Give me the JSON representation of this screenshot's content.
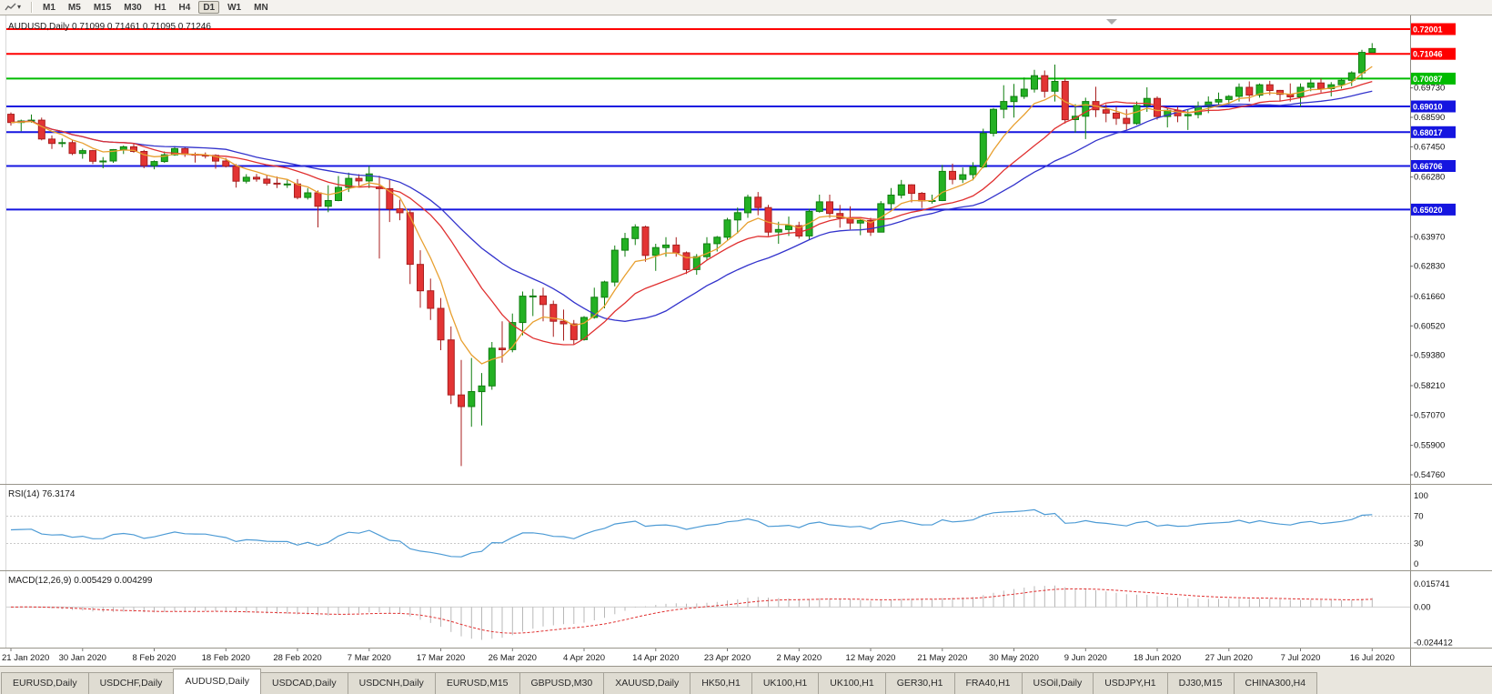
{
  "toolbar": {
    "timeframes": [
      "M1",
      "M5",
      "M15",
      "M30",
      "H1",
      "H4",
      "D1",
      "W1",
      "MN"
    ],
    "active_timeframe": "D1"
  },
  "ui": {
    "header_display": "AUDUSD,Daily 0.71099 0.71461 0.71095 0.71246"
  },
  "indicators": {
    "rsi": {
      "display": "RSI(14) 76.3174",
      "label": "RSI(14)",
      "value": "76.3174",
      "period": 14,
      "levels": [
        "100",
        "70",
        "30",
        "0"
      ],
      "line_color": "#4D9BD5"
    },
    "macd": {
      "display": "MACD(12,26,9) 0.005429 0.004299",
      "label": "MACD(12,26,9)",
      "macd_value": "0.005429",
      "signal_value": "0.004299",
      "fast": 12,
      "slow": 26,
      "signal": 9,
      "scale_labels": [
        "0.015741",
        "0.00",
        "-0.024412"
      ],
      "histogram_color": "#B8B8B8",
      "signal_color": "#E03030"
    }
  },
  "chart_data": {
    "type": "candlestick",
    "symbol": "AUDUSD",
    "timeframe": "Daily",
    "current_bar": {
      "open": "0.71099",
      "high": "0.71461",
      "low": "0.71095",
      "close": "0.71246"
    },
    "bars_per_label": 7,
    "x_labels": [
      "21 Jan 2020",
      "30 Jan 2020",
      "8 Feb 2020",
      "18 Feb 2020",
      "28 Feb 2020",
      "7 Mar 2020",
      "17 Mar 2020",
      "26 Mar 2020",
      "4 Apr 2020",
      "14 Apr 2020",
      "23 Apr 2020",
      "2 May 2020",
      "12 May 2020",
      "21 May 2020",
      "30 May 2020",
      "9 Jun 2020",
      "18 Jun 2020",
      "27 Jun 2020",
      "7 Jul 2020",
      "16 Jul 2020"
    ],
    "price_ticks": [
      "0.69730",
      "0.68590",
      "0.67450",
      "0.66280",
      "0.63970",
      "0.62830",
      "0.61660",
      "0.60520",
      "0.59380",
      "0.58210",
      "0.57070",
      "0.55900",
      "0.54760"
    ],
    "h_lines": [
      {
        "label": "0.72001",
        "color": "#FF0000"
      },
      {
        "label": "0.71046",
        "color": "#FF0000"
      },
      {
        "label": "0.70087",
        "color": "#00BB00"
      },
      {
        "label": "0.69010",
        "color": "#1515E0"
      },
      {
        "label": "0.68017",
        "color": "#1515E0"
      },
      {
        "label": "0.66706",
        "color": "#1515E0"
      },
      {
        "label": "0.65020",
        "color": "#1515E0"
      }
    ],
    "moving_averages": [
      {
        "period": 22,
        "type": "sma",
        "color": "#3333CC"
      },
      {
        "period": 13,
        "type": "sma",
        "color": "#E03030"
      },
      {
        "period": 6,
        "type": "ema",
        "color": "#E8A030"
      }
    ],
    "colors": {
      "bull": "#23B123",
      "bull_edge": "#0F7E0F",
      "bear": "#E33434",
      "bear_edge": "#A81F1F"
    },
    "candles": [
      [
        0.6871,
        0.6878,
        0.6827,
        0.6839
      ],
      [
        0.6839,
        0.685,
        0.6805,
        0.6845
      ],
      [
        0.6845,
        0.687,
        0.6838,
        0.6848
      ],
      [
        0.6848,
        0.6858,
        0.677,
        0.6775
      ],
      [
        0.6775,
        0.6789,
        0.6737,
        0.6758
      ],
      [
        0.6758,
        0.6777,
        0.6743,
        0.6761
      ],
      [
        0.6761,
        0.6772,
        0.6713,
        0.6719
      ],
      [
        0.6719,
        0.6738,
        0.6699,
        0.673
      ],
      [
        0.673,
        0.6733,
        0.6678,
        0.6689
      ],
      [
        0.6689,
        0.6705,
        0.6662,
        0.669
      ],
      [
        0.669,
        0.6736,
        0.6683,
        0.6734
      ],
      [
        0.6734,
        0.675,
        0.6717,
        0.6745
      ],
      [
        0.6745,
        0.6759,
        0.6722,
        0.6727
      ],
      [
        0.6727,
        0.6733,
        0.6662,
        0.6672
      ],
      [
        0.6672,
        0.6692,
        0.6658,
        0.6688
      ],
      [
        0.6688,
        0.6727,
        0.6683,
        0.6714
      ],
      [
        0.6714,
        0.6748,
        0.671,
        0.6738
      ],
      [
        0.6738,
        0.6743,
        0.6706,
        0.6716
      ],
      [
        0.6716,
        0.6723,
        0.6684,
        0.6713
      ],
      [
        0.6713,
        0.6723,
        0.67,
        0.6712
      ],
      [
        0.6712,
        0.6716,
        0.666,
        0.669
      ],
      [
        0.669,
        0.6702,
        0.6665,
        0.667
      ],
      [
        0.667,
        0.6678,
        0.6587,
        0.6612
      ],
      [
        0.6612,
        0.6639,
        0.6603,
        0.6627
      ],
      [
        0.6627,
        0.664,
        0.661,
        0.662
      ],
      [
        0.662,
        0.6635,
        0.6595,
        0.6604
      ],
      [
        0.6604,
        0.663,
        0.6585,
        0.6601
      ],
      [
        0.6601,
        0.662,
        0.6586,
        0.6601
      ],
      [
        0.6601,
        0.662,
        0.6542,
        0.6549
      ],
      [
        0.6549,
        0.6585,
        0.6541,
        0.6567
      ],
      [
        0.6567,
        0.6576,
        0.6433,
        0.6515
      ],
      [
        0.6515,
        0.6596,
        0.6492,
        0.6537
      ],
      [
        0.6537,
        0.6632,
        0.6534,
        0.6588
      ],
      [
        0.6588,
        0.6645,
        0.657,
        0.6623
      ],
      [
        0.6623,
        0.6639,
        0.6593,
        0.6613
      ],
      [
        0.6613,
        0.667,
        0.6585,
        0.664
      ],
      [
        0.659,
        0.6633,
        0.6313,
        0.6583
      ],
      [
        0.6583,
        0.6617,
        0.6454,
        0.6505
      ],
      [
        0.6505,
        0.654,
        0.6461,
        0.649
      ],
      [
        0.649,
        0.6505,
        0.6214,
        0.629
      ],
      [
        0.629,
        0.6345,
        0.6122,
        0.6188
      ],
      [
        0.6188,
        0.6235,
        0.6075,
        0.612
      ],
      [
        0.612,
        0.616,
        0.5958,
        0.5998
      ],
      [
        0.5998,
        0.605,
        0.575,
        0.5785
      ],
      [
        0.5785,
        0.592,
        0.551,
        0.574
      ],
      [
        0.574,
        0.5928,
        0.5662,
        0.5798
      ],
      [
        0.5798,
        0.587,
        0.5667,
        0.582
      ],
      [
        0.582,
        0.599,
        0.5805,
        0.5966
      ],
      [
        0.5966,
        0.607,
        0.591,
        0.596
      ],
      [
        0.596,
        0.61,
        0.595,
        0.6065
      ],
      [
        0.6065,
        0.6185,
        0.6015,
        0.6167
      ],
      [
        0.6167,
        0.6195,
        0.609,
        0.6168
      ],
      [
        0.6168,
        0.62,
        0.607,
        0.6135
      ],
      [
        0.6135,
        0.615,
        0.601,
        0.607
      ],
      [
        0.607,
        0.6115,
        0.5995,
        0.606
      ],
      [
        0.606,
        0.6075,
        0.598,
        0.5999
      ],
      [
        0.5999,
        0.609,
        0.5995,
        0.6085
      ],
      [
        0.6085,
        0.62,
        0.608,
        0.6163
      ],
      [
        0.6163,
        0.6227,
        0.612,
        0.6222
      ],
      [
        0.6222,
        0.6363,
        0.6205,
        0.6345
      ],
      [
        0.6345,
        0.6412,
        0.632,
        0.639
      ],
      [
        0.639,
        0.6445,
        0.6365,
        0.6435
      ],
      [
        0.6435,
        0.644,
        0.63,
        0.6325
      ],
      [
        0.6325,
        0.637,
        0.6265,
        0.6355
      ],
      [
        0.6355,
        0.6395,
        0.632,
        0.6365
      ],
      [
        0.6365,
        0.6395,
        0.632,
        0.6335
      ],
      [
        0.6335,
        0.634,
        0.6253,
        0.627
      ],
      [
        0.627,
        0.633,
        0.625,
        0.632
      ],
      [
        0.632,
        0.6395,
        0.6305,
        0.637
      ],
      [
        0.637,
        0.64,
        0.634,
        0.6395
      ],
      [
        0.6395,
        0.647,
        0.6385,
        0.6462
      ],
      [
        0.6462,
        0.651,
        0.641,
        0.649
      ],
      [
        0.649,
        0.656,
        0.647,
        0.655
      ],
      [
        0.655,
        0.657,
        0.648,
        0.651
      ],
      [
        0.651,
        0.652,
        0.64,
        0.6415
      ],
      [
        0.6415,
        0.6455,
        0.637,
        0.6425
      ],
      [
        0.6425,
        0.6475,
        0.64,
        0.644
      ],
      [
        0.644,
        0.6455,
        0.639,
        0.64
      ],
      [
        0.64,
        0.6505,
        0.6385,
        0.6495
      ],
      [
        0.6495,
        0.656,
        0.649,
        0.6532
      ],
      [
        0.6532,
        0.656,
        0.647,
        0.6487
      ],
      [
        0.6487,
        0.652,
        0.6432,
        0.647
      ],
      [
        0.647,
        0.6515,
        0.6425,
        0.645
      ],
      [
        0.645,
        0.6465,
        0.6403,
        0.646
      ],
      [
        0.646,
        0.647,
        0.64,
        0.6415
      ],
      [
        0.6415,
        0.6535,
        0.6415,
        0.6525
      ],
      [
        0.6525,
        0.6585,
        0.6505,
        0.6558
      ],
      [
        0.6558,
        0.6617,
        0.6545,
        0.6598
      ],
      [
        0.6598,
        0.66,
        0.653,
        0.6565
      ],
      [
        0.6565,
        0.657,
        0.6508,
        0.6535
      ],
      [
        0.6535,
        0.656,
        0.6525,
        0.6537
      ],
      [
        0.6537,
        0.6675,
        0.6535,
        0.665
      ],
      [
        0.665,
        0.668,
        0.66,
        0.6619
      ],
      [
        0.6619,
        0.6665,
        0.6605,
        0.6637
      ],
      [
        0.6637,
        0.6685,
        0.6615,
        0.6667
      ],
      [
        0.6667,
        0.6815,
        0.6662,
        0.6797
      ],
      [
        0.6797,
        0.6895,
        0.6785,
        0.689
      ],
      [
        0.689,
        0.6983,
        0.6855,
        0.692
      ],
      [
        0.692,
        0.6988,
        0.6858,
        0.694
      ],
      [
        0.694,
        0.7013,
        0.693,
        0.6968
      ],
      [
        0.6968,
        0.7043,
        0.6955,
        0.702
      ],
      [
        0.702,
        0.704,
        0.6935,
        0.696
      ],
      [
        0.696,
        0.7063,
        0.692,
        0.6998
      ],
      [
        0.6998,
        0.701,
        0.6835,
        0.685
      ],
      [
        0.685,
        0.691,
        0.68,
        0.6863
      ],
      [
        0.6863,
        0.6935,
        0.6775,
        0.692
      ],
      [
        0.692,
        0.6977,
        0.686,
        0.6888
      ],
      [
        0.6888,
        0.691,
        0.684,
        0.6875
      ],
      [
        0.6875,
        0.69,
        0.683,
        0.6855
      ],
      [
        0.6855,
        0.689,
        0.681,
        0.6835
      ],
      [
        0.6835,
        0.692,
        0.683,
        0.6905
      ],
      [
        0.6905,
        0.6975,
        0.688,
        0.6932
      ],
      [
        0.6932,
        0.694,
        0.685,
        0.6862
      ],
      [
        0.6862,
        0.6895,
        0.682,
        0.6886
      ],
      [
        0.6886,
        0.69,
        0.684,
        0.6865
      ],
      [
        0.6865,
        0.689,
        0.681,
        0.687
      ],
      [
        0.687,
        0.692,
        0.6855,
        0.6902
      ],
      [
        0.6902,
        0.694,
        0.6875,
        0.6918
      ],
      [
        0.6918,
        0.6955,
        0.69,
        0.6928
      ],
      [
        0.6928,
        0.6945,
        0.691,
        0.694
      ],
      [
        0.694,
        0.699,
        0.692,
        0.6975
      ],
      [
        0.6975,
        0.6998,
        0.692,
        0.6945
      ],
      [
        0.6945,
        0.699,
        0.6935,
        0.6985
      ],
      [
        0.6985,
        0.7,
        0.6945,
        0.6963
      ],
      [
        0.6963,
        0.6965,
        0.692,
        0.6948
      ],
      [
        0.6948,
        0.699,
        0.692,
        0.6938
      ],
      [
        0.6938,
        0.699,
        0.69,
        0.6975
      ],
      [
        0.6975,
        0.7007,
        0.696,
        0.6992
      ],
      [
        0.6992,
        0.701,
        0.6955,
        0.697
      ],
      [
        0.697,
        0.6995,
        0.694,
        0.6985
      ],
      [
        0.6985,
        0.701,
        0.697,
        0.7002
      ],
      [
        0.7002,
        0.7037,
        0.698,
        0.7031
      ],
      [
        0.7031,
        0.712,
        0.7005,
        0.711
      ],
      [
        0.71099,
        0.71461,
        0.71095,
        0.71246
      ]
    ]
  },
  "tabs": {
    "active_index": 2,
    "items": [
      "EURUSD,Daily",
      "USDCHF,Daily",
      "AUDUSD,Daily",
      "USDCAD,Daily",
      "USDCNH,Daily",
      "EURUSD,M15",
      "GBPUSD,M30",
      "XAUUSD,Daily",
      "HK50,H1",
      "UK100,H1",
      "UK100,H1",
      "GER30,H1",
      "FRA40,H1",
      "USOil,Daily",
      "USDJPY,H1",
      "DJ30,M15",
      "CHINA300,H4"
    ]
  }
}
